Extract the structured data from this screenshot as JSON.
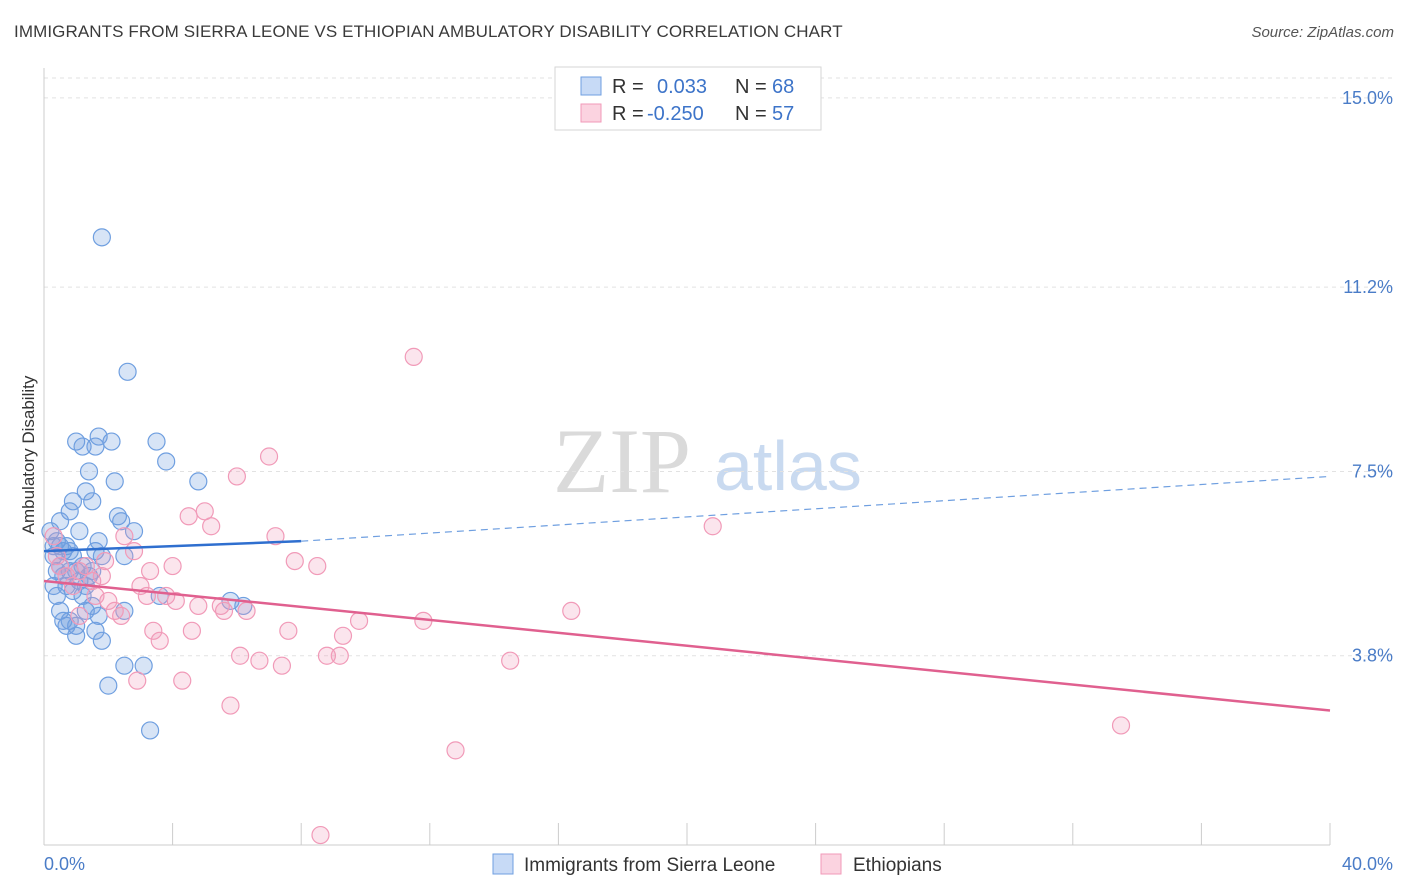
{
  "header": {
    "title": "IMMIGRANTS FROM SIERRA LEONE VS ETHIOPIAN AMBULATORY DISABILITY CORRELATION CHART",
    "source": "Source: ZipAtlas.com"
  },
  "watermark": {
    "zip": "ZIP",
    "atlas": "atlas"
  },
  "legend": {
    "r_label": "R =",
    "n_label": "N =",
    "items": [
      {
        "r": "0.033",
        "n": "68",
        "color": "#6f9fe0"
      },
      {
        "r": "-0.250",
        "n": "57",
        "color": "#f19ab8"
      }
    ]
  },
  "bottom_legend": [
    {
      "label": "Immigrants from Sierra Leone"
    },
    {
      "label": "Ethiopians"
    }
  ],
  "chart_data": {
    "type": "scatter",
    "title": "IMMIGRANTS FROM SIERRA LEONE VS ETHIOPIAN AMBULATORY DISABILITY CORRELATION CHART",
    "xlabel": "",
    "ylabel": "Ambulatory Disability",
    "xlim": [
      0,
      40
    ],
    "ylim": [
      0,
      15.6
    ],
    "x_tick_labels": [
      "0.0%",
      "40.0%"
    ],
    "y_ticks": [
      {
        "value": 3.8,
        "label": "3.8%"
      },
      {
        "value": 7.5,
        "label": "7.5%"
      },
      {
        "value": 11.2,
        "label": "11.2%"
      },
      {
        "value": 15.0,
        "label": "15.0%"
      }
    ],
    "grid": true,
    "series": [
      {
        "name": "Immigrants from Sierra Leone",
        "color": "#6f9fe0",
        "stroke": "#4a7cc7",
        "trend": {
          "x0": 0.0,
          "y0": 5.9,
          "x1": 8.0,
          "y1": 6.1,
          "dash_to_x": 40.0,
          "dash_to_y": 7.4
        },
        "points": [
          [
            0.2,
            6.3
          ],
          [
            0.3,
            6.0
          ],
          [
            0.3,
            5.8
          ],
          [
            0.4,
            6.1
          ],
          [
            0.4,
            5.5
          ],
          [
            0.5,
            6.0
          ],
          [
            0.5,
            5.6
          ],
          [
            0.6,
            5.9
          ],
          [
            0.6,
            5.4
          ],
          [
            0.7,
            6.0
          ],
          [
            0.7,
            5.2
          ],
          [
            0.8,
            5.5
          ],
          [
            0.8,
            5.9
          ],
          [
            0.9,
            5.1
          ],
          [
            1.0,
            5.5
          ],
          [
            1.1,
            5.3
          ],
          [
            1.2,
            5.6
          ],
          [
            1.3,
            5.2
          ],
          [
            1.4,
            5.4
          ],
          [
            1.5,
            5.5
          ],
          [
            1.6,
            5.9
          ],
          [
            0.4,
            5.0
          ],
          [
            0.5,
            4.7
          ],
          [
            0.6,
            4.5
          ],
          [
            0.7,
            4.4
          ],
          [
            0.8,
            4.5
          ],
          [
            1.0,
            4.4
          ],
          [
            1.0,
            4.2
          ],
          [
            1.3,
            4.7
          ],
          [
            1.5,
            4.8
          ],
          [
            1.6,
            4.3
          ],
          [
            1.7,
            4.6
          ],
          [
            1.8,
            4.1
          ],
          [
            0.8,
            6.7
          ],
          [
            0.9,
            6.9
          ],
          [
            1.1,
            6.3
          ],
          [
            1.3,
            7.1
          ],
          [
            1.4,
            7.5
          ],
          [
            1.5,
            6.9
          ],
          [
            1.7,
            6.1
          ],
          [
            1.8,
            5.8
          ],
          [
            1.0,
            8.1
          ],
          [
            1.2,
            8.0
          ],
          [
            1.6,
            8.0
          ],
          [
            1.7,
            8.2
          ],
          [
            2.1,
            8.1
          ],
          [
            2.2,
            7.3
          ],
          [
            2.3,
            6.6
          ],
          [
            2.4,
            6.5
          ],
          [
            2.5,
            5.8
          ],
          [
            2.5,
            4.7
          ],
          [
            3.5,
            8.1
          ],
          [
            3.8,
            7.7
          ],
          [
            4.8,
            7.3
          ],
          [
            2.5,
            3.6
          ],
          [
            3.1,
            3.6
          ],
          [
            3.6,
            5.0
          ],
          [
            5.8,
            4.9
          ],
          [
            6.2,
            4.8
          ],
          [
            1.8,
            12.2
          ],
          [
            2.6,
            9.5
          ],
          [
            2.0,
            3.2
          ],
          [
            3.3,
            2.3
          ],
          [
            0.3,
            5.2
          ],
          [
            0.5,
            6.5
          ],
          [
            1.2,
            5.0
          ],
          [
            0.9,
            5.8
          ],
          [
            2.8,
            6.3
          ]
        ]
      },
      {
        "name": "Ethiopians",
        "color": "#f19ab8",
        "stroke": "#e26f99",
        "trend": {
          "x0": 0.0,
          "y0": 5.3,
          "x1": 40.0,
          "y1": 2.7
        },
        "points": [
          [
            0.3,
            6.2
          ],
          [
            0.4,
            5.8
          ],
          [
            0.5,
            5.6
          ],
          [
            0.7,
            5.4
          ],
          [
            0.9,
            5.2
          ],
          [
            1.1,
            5.5
          ],
          [
            1.3,
            5.6
          ],
          [
            1.5,
            5.3
          ],
          [
            1.6,
            5.0
          ],
          [
            1.8,
            5.4
          ],
          [
            2.0,
            4.9
          ],
          [
            2.2,
            4.7
          ],
          [
            2.4,
            4.6
          ],
          [
            2.5,
            6.2
          ],
          [
            2.8,
            5.9
          ],
          [
            3.0,
            5.2
          ],
          [
            3.3,
            5.5
          ],
          [
            3.4,
            4.3
          ],
          [
            3.6,
            4.1
          ],
          [
            3.8,
            5.0
          ],
          [
            4.0,
            5.6
          ],
          [
            4.1,
            4.9
          ],
          [
            4.3,
            3.3
          ],
          [
            4.5,
            6.6
          ],
          [
            4.6,
            4.3
          ],
          [
            4.8,
            4.8
          ],
          [
            5.0,
            6.7
          ],
          [
            5.2,
            6.4
          ],
          [
            5.5,
            4.8
          ],
          [
            5.6,
            4.7
          ],
          [
            5.8,
            2.8
          ],
          [
            6.0,
            7.4
          ],
          [
            6.1,
            3.8
          ],
          [
            6.3,
            4.7
          ],
          [
            6.7,
            3.7
          ],
          [
            7.0,
            7.8
          ],
          [
            7.2,
            6.2
          ],
          [
            7.4,
            3.6
          ],
          [
            7.6,
            4.3
          ],
          [
            7.8,
            5.7
          ],
          [
            8.5,
            5.6
          ],
          [
            8.8,
            3.8
          ],
          [
            9.2,
            3.8
          ],
          [
            9.3,
            4.2
          ],
          [
            9.8,
            4.5
          ],
          [
            11.5,
            9.8
          ],
          [
            11.8,
            4.5
          ],
          [
            12.8,
            1.9
          ],
          [
            14.5,
            3.7
          ],
          [
            16.4,
            4.7
          ],
          [
            20.8,
            6.4
          ],
          [
            33.5,
            2.4
          ],
          [
            8.6,
            0.2
          ],
          [
            1.1,
            4.6
          ],
          [
            2.9,
            3.3
          ],
          [
            3.2,
            5.0
          ],
          [
            1.9,
            5.7
          ]
        ]
      }
    ]
  }
}
